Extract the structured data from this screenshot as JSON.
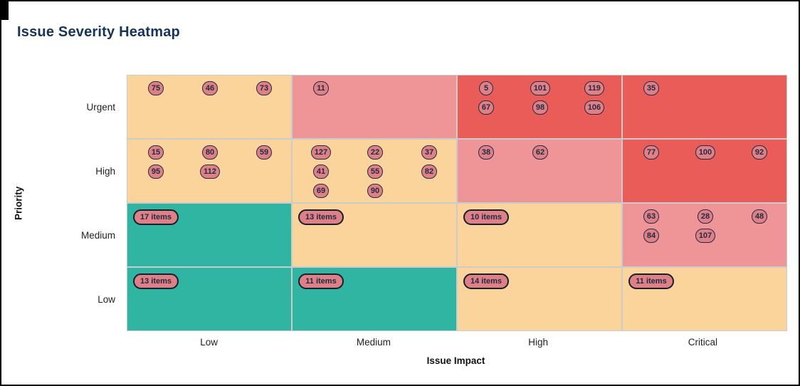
{
  "header": {
    "title": "Issue Severity Heatmap"
  },
  "chart_data": {
    "type": "heatmap",
    "title": "Issue Severity Heatmap",
    "xlabel": "Issue Impact",
    "ylabel": "Priority",
    "x_categories": [
      "Low",
      "Medium",
      "High",
      "Critical"
    ],
    "y_categories": [
      "Urgent",
      "High",
      "Medium",
      "Low"
    ],
    "legend_position": "none",
    "grid": "on",
    "severity_palette": {
      "teal": "#30b5a2",
      "orange": "#fbd49c",
      "pink": "#f09597",
      "red": "#e95c57"
    },
    "badge_fill": "#de8086",
    "badge_border": "#1f2a44",
    "cells": [
      {
        "row": "Urgent",
        "col": "Low",
        "color": "#fbd49c",
        "badges": [
          "75",
          "46",
          "73"
        ]
      },
      {
        "row": "Urgent",
        "col": "Medium",
        "color": "#f09597",
        "badges": [
          "11"
        ]
      },
      {
        "row": "Urgent",
        "col": "High",
        "color": "#e95c57",
        "badges": [
          "5",
          "101",
          "119",
          "67",
          "98",
          "106"
        ]
      },
      {
        "row": "Urgent",
        "col": "Critical",
        "color": "#e95c57",
        "badges": [
          "35"
        ]
      },
      {
        "row": "High",
        "col": "Low",
        "color": "#fbd49c",
        "badges": [
          "15",
          "80",
          "59",
          "95",
          "112"
        ]
      },
      {
        "row": "High",
        "col": "Medium",
        "color": "#fbd49c",
        "badges": [
          "127",
          "22",
          "37",
          "41",
          "55",
          "82",
          "69",
          "90"
        ]
      },
      {
        "row": "High",
        "col": "High",
        "color": "#f09597",
        "badges": [
          "38",
          "62"
        ]
      },
      {
        "row": "High",
        "col": "Critical",
        "color": "#e95c57",
        "badges": [
          "77",
          "100",
          "92"
        ]
      },
      {
        "row": "Medium",
        "col": "Low",
        "color": "#30b5a2",
        "badges": [
          "17 items"
        ]
      },
      {
        "row": "Medium",
        "col": "Medium",
        "color": "#fbd49c",
        "badges": [
          "13 items"
        ]
      },
      {
        "row": "Medium",
        "col": "High",
        "color": "#fbd49c",
        "badges": [
          "10 items"
        ]
      },
      {
        "row": "Medium",
        "col": "Critical",
        "color": "#f09597",
        "badges": [
          "63",
          "28",
          "48",
          "84",
          "107"
        ]
      },
      {
        "row": "Low",
        "col": "Low",
        "color": "#30b5a2",
        "badges": [
          "13 items"
        ]
      },
      {
        "row": "Low",
        "col": "Medium",
        "color": "#30b5a2",
        "badges": [
          "11 items"
        ]
      },
      {
        "row": "Low",
        "col": "High",
        "color": "#fbd49c",
        "badges": [
          "14 items"
        ]
      },
      {
        "row": "Low",
        "col": "Critical",
        "color": "#fbd49c",
        "badges": [
          "11 items"
        ]
      }
    ]
  }
}
